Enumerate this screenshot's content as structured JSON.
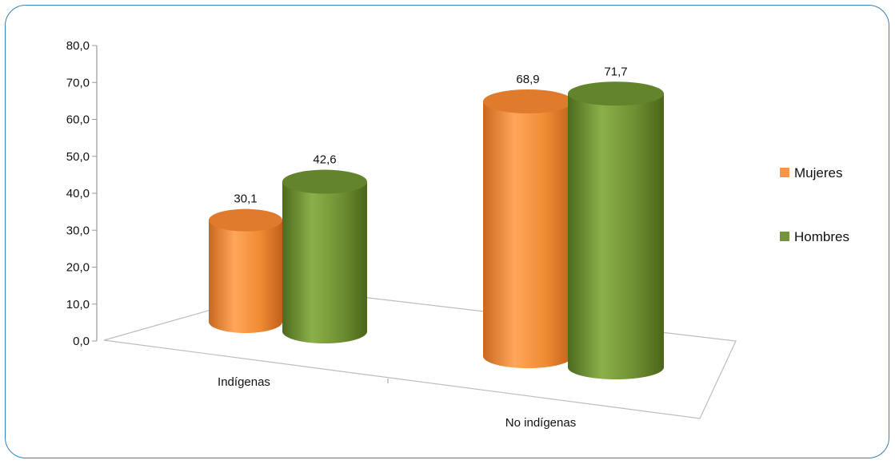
{
  "chart_data": {
    "type": "bar",
    "categories": [
      "Indígenas",
      "No indígenas"
    ],
    "series": [
      {
        "name": "Mujeres",
        "values": [
          30.1,
          68.9
        ],
        "color": "#f79646"
      },
      {
        "name": "Hombres",
        "values": [
          42.6,
          71.7
        ],
        "color": "#77933c"
      }
    ],
    "data_labels": [
      [
        "30,1",
        "68,9"
      ],
      [
        "42,6",
        "71,7"
      ]
    ],
    "ylim": [
      0,
      80
    ],
    "yticks": [
      "0,0",
      "10,0",
      "20,0",
      "30,0",
      "40,0",
      "50,0",
      "60,0",
      "70,0",
      "80,0"
    ],
    "style": "3d-cylinder",
    "legend_position": "right",
    "grid": false,
    "title": "",
    "xlabel": "",
    "ylabel": ""
  }
}
